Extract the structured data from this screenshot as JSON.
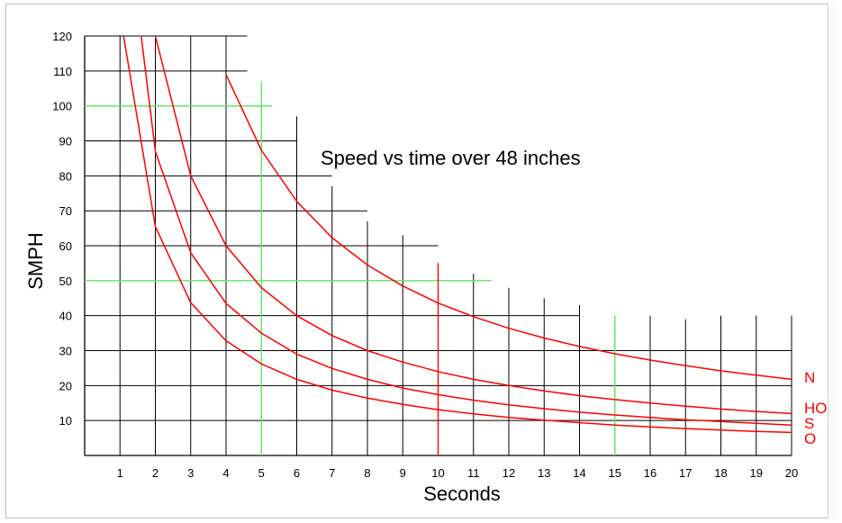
{
  "chart_data": {
    "type": "line",
    "title": "Speed vs time over 48 inches",
    "xlabel": "Seconds",
    "ylabel": "SMPH",
    "xlim": [
      0,
      20
    ],
    "ylim": [
      0,
      120
    ],
    "x_ticks": [
      "1",
      "2",
      "3",
      "4",
      "5",
      "6",
      "7",
      "8",
      "9",
      "10",
      "11",
      "12",
      "13",
      "14",
      "15",
      "16",
      "17",
      "18",
      "19",
      "20"
    ],
    "y_ticks": [
      "10",
      "20",
      "30",
      "40",
      "50",
      "60",
      "70",
      "80",
      "90",
      "100",
      "110",
      "120"
    ],
    "grid": true,
    "highlight_lines": {
      "green_vertical_x": [
        5,
        15
      ],
      "green_horizontal_y": [
        100,
        50
      ],
      "red_vertical_x": [
        10
      ]
    },
    "series": [
      {
        "name": "N",
        "x": [
          4,
          5,
          6,
          7,
          8,
          9,
          10,
          11,
          12,
          13,
          14,
          15,
          16,
          17,
          18,
          19,
          20
        ],
        "values": [
          109.0,
          87.3,
          72.7,
          62.3,
          54.5,
          48.5,
          43.6,
          39.7,
          36.4,
          33.6,
          31.2,
          29.1,
          27.3,
          25.7,
          24.2,
          23.0,
          21.8
        ]
      },
      {
        "name": "HO",
        "x": [
          2,
          3,
          4,
          5,
          6,
          7,
          8,
          9,
          10,
          11,
          12,
          13,
          14,
          15,
          16,
          17,
          18,
          19,
          20
        ],
        "values": [
          120.0,
          80.0,
          60.0,
          48.0,
          40.0,
          34.3,
          30.0,
          26.7,
          24.0,
          21.8,
          20.0,
          18.5,
          17.1,
          16.0,
          15.0,
          14.1,
          13.3,
          12.6,
          12.0
        ]
      },
      {
        "name": "S",
        "x": [
          1.6,
          2,
          3,
          4,
          5,
          6,
          7,
          8,
          9,
          10,
          11,
          12,
          13,
          14,
          15,
          16,
          17,
          18,
          19,
          20
        ],
        "values": [
          120.0,
          87.0,
          58.0,
          43.5,
          35.0,
          29.0,
          24.9,
          21.8,
          19.3,
          17.4,
          15.8,
          14.5,
          13.4,
          12.4,
          11.6,
          10.9,
          10.2,
          9.7,
          9.2,
          8.7
        ]
      },
      {
        "name": "O",
        "x": [
          1.1,
          2,
          3,
          4,
          5,
          6,
          7,
          8,
          9,
          10,
          11,
          12,
          13,
          14,
          15,
          16,
          17,
          18,
          19,
          20
        ],
        "values": [
          120.0,
          65.5,
          43.7,
          32.8,
          26.2,
          21.8,
          18.7,
          16.4,
          14.6,
          13.1,
          11.9,
          10.9,
          10.1,
          9.4,
          8.7,
          8.2,
          7.7,
          7.3,
          6.9,
          6.6
        ]
      }
    ],
    "legend": "series names shown at right end of each curve"
  },
  "colors": {
    "curve": "#ff0000",
    "grid": "#000000",
    "highlight_green": "#66ee66",
    "highlight_red": "#ff0000"
  }
}
